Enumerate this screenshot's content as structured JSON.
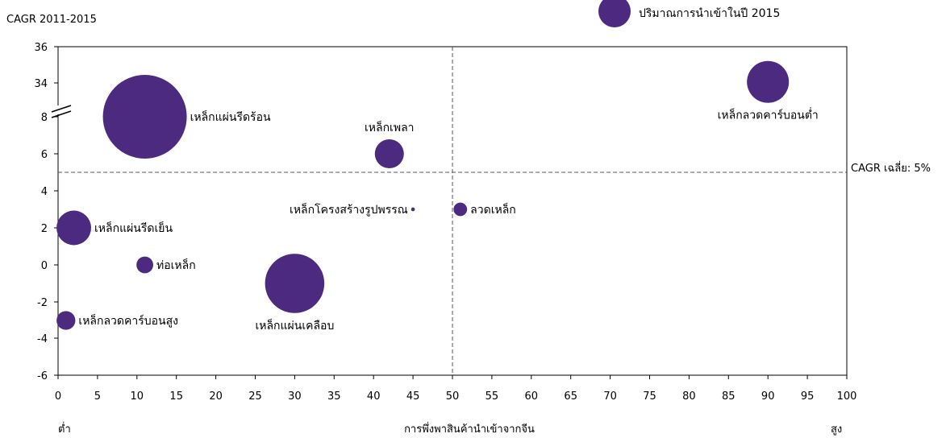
{
  "chart_data": {
    "type": "scatter",
    "subtype": "bubble",
    "ylabel": "CAGR 2011-2015",
    "xlabel": "การพึ่งพาสินค้านำเข้าจากจีน",
    "x_low_label": "ต่ำ",
    "x_high_label": "สูง",
    "legend_label": "ปริมาณการนำเข้าในปี  2015",
    "legend_position": "top-right",
    "avg_label": "CAGR เฉลี่ย: 5%",
    "avg_value": 5,
    "divider_x": 50,
    "bubble_color": "#4b2a80",
    "xlim": [
      0,
      100
    ],
    "x_ticks": [
      "0",
      "5",
      "10",
      "15",
      "20",
      "25",
      "30",
      "35",
      "40",
      "45",
      "50",
      "55",
      "60",
      "65",
      "70",
      "75",
      "80",
      "85",
      "90",
      "95",
      "100"
    ],
    "y_ticks": [
      "-6",
      "-4",
      "-2",
      "0",
      "2",
      "4",
      "6",
      "8",
      "34",
      "36"
    ],
    "y_axis_break": "between 8 and 34",
    "grid": false,
    "points": [
      {
        "name": "เหล็กแผ่นรีดร้อน",
        "x": 11,
        "y": 8,
        "size": 100
      },
      {
        "name": "เหล็กเพลา",
        "x": 42,
        "y": 6,
        "size": 12
      },
      {
        "name": "เหล็กลวดคาร์บอนต่ำ",
        "x": 90,
        "y": 34.8,
        "size": 25
      },
      {
        "name": "เหล็กโครงสร้างรูปพรรณ",
        "x": 45,
        "y": 3,
        "size": 0.2
      },
      {
        "name": "ลวดเหล็ก",
        "x": 51,
        "y": 3,
        "size": 2.6
      },
      {
        "name": "เหล็กแผ่นรีดเย็น",
        "x": 2,
        "y": 2,
        "size": 17
      },
      {
        "name": "ท่อเหล็ก",
        "x": 11,
        "y": 0,
        "size": 4
      },
      {
        "name": "เหล็กแผ่นเคลือบ",
        "x": 30,
        "y": -1,
        "size": 50
      },
      {
        "name": "เหล็กลวดคาร์บอนสูง",
        "x": 1,
        "y": -3,
        "size": 5
      }
    ]
  }
}
